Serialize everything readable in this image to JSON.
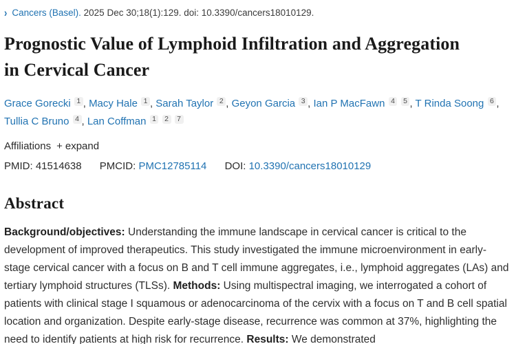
{
  "citation": {
    "chevron": "›",
    "journal": "Cancers (Basel).",
    "details": "2025 Dec 30;18(1):129. doi: 10.3390/cancers18010129."
  },
  "title": "Prognostic Value of Lymphoid Infiltration and Aggregation in Cervical Cancer",
  "authors": [
    {
      "name": "Grace Gorecki",
      "sups": [
        "1"
      ]
    },
    {
      "name": "Macy Hale",
      "sups": [
        "1"
      ]
    },
    {
      "name": "Sarah Taylor",
      "sups": [
        "2"
      ]
    },
    {
      "name": "Geyon Garcia",
      "sups": [
        "3"
      ]
    },
    {
      "name": "Ian P MacFawn",
      "sups": [
        "4",
        "5"
      ]
    },
    {
      "name": "T Rinda Soong",
      "sups": [
        "6"
      ]
    },
    {
      "name": "Tullia C Bruno",
      "sups": [
        "4"
      ]
    },
    {
      "name": "Lan Coffman",
      "sups": [
        "1",
        "2",
        "7"
      ]
    }
  ],
  "author_separator": ", ",
  "affiliations": {
    "label": "Affiliations",
    "plus": "+",
    "expand_label": "expand"
  },
  "identifiers": {
    "pmid_label": "PMID:",
    "pmid_value": "41514638",
    "pmcid_label": "PMCID:",
    "pmcid_value": "PMC12785114",
    "doi_label": "DOI:",
    "doi_value": "10.3390/cancers18010129"
  },
  "abstract": {
    "heading": "Abstract",
    "segments": [
      {
        "bold": true,
        "text": "Background/objectives:"
      },
      {
        "bold": false,
        "text": " Understanding the immune landscape in cervical cancer is critical to the development of improved therapeutics. This study investigated the immune microenvironment in early-stage cervical cancer with a focus on B and T cell immune aggregates, i.e., lymphoid aggregates (LAs) and tertiary lymphoid structures (TLSs). "
      },
      {
        "bold": true,
        "text": "Methods:"
      },
      {
        "bold": false,
        "text": " Using multispectral imaging, we interrogated a cohort of patients with clinical stage I squamous or adenocarcinoma of the cervix with a focus on T and B cell spatial location and organization. Despite early-stage disease, recurrence was common at 37%, highlighting the need to identify patients at high risk for recurrence. "
      },
      {
        "bold": true,
        "text": "Results:"
      },
      {
        "bold": false,
        "text": " We demonstrated"
      }
    ]
  },
  "colors": {
    "link_blue": "#2173b2",
    "text_dark": "#212121",
    "badge_bg": "#f0f0f0"
  }
}
